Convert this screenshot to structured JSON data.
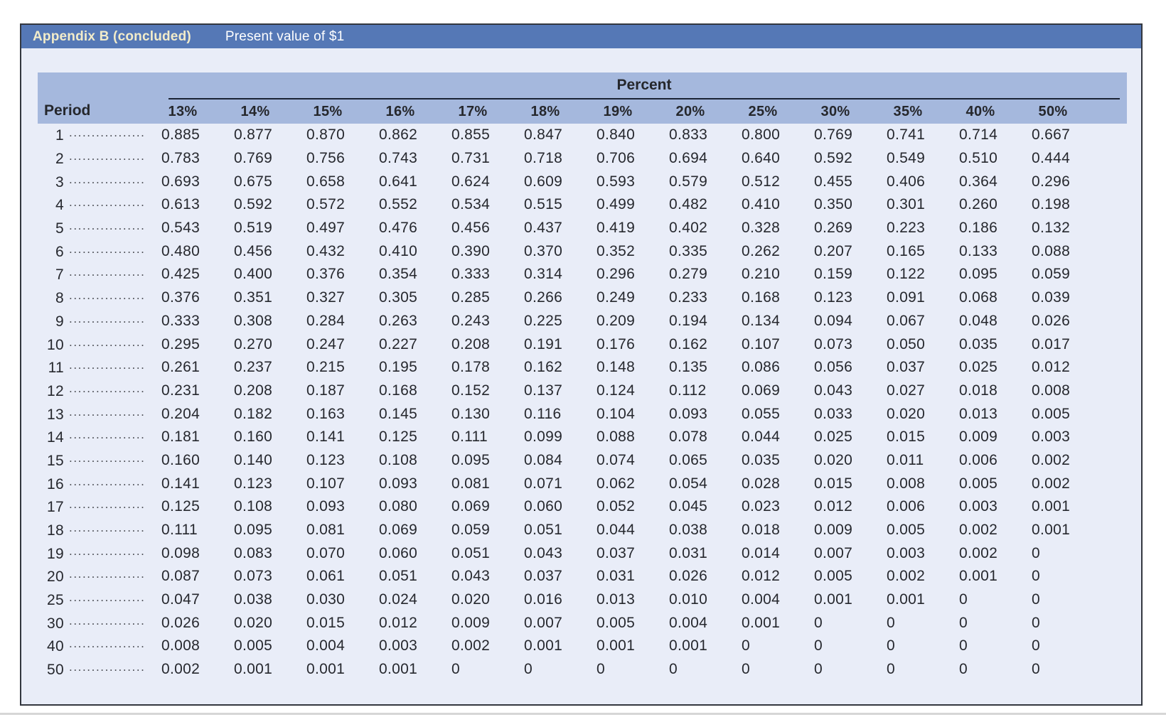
{
  "header": {
    "title_bold": "Appendix B (concluded)",
    "title_rest": "Present value of $1"
  },
  "table": {
    "group_header": "Percent",
    "period_label": "Period",
    "leader_dots": "......................................",
    "rate_headers": [
      "13%",
      "14%",
      "15%",
      "16%",
      "17%",
      "18%",
      "19%",
      "20%",
      "25%",
      "30%",
      "35%",
      "40%",
      "50%"
    ],
    "rows": [
      {
        "period": "1",
        "values": [
          "0.885",
          "0.877",
          "0.870",
          "0.862",
          "0.855",
          "0.847",
          "0.840",
          "0.833",
          "0.800",
          "0.769",
          "0.741",
          "0.714",
          "0.667"
        ]
      },
      {
        "period": "2",
        "values": [
          "0.783",
          "0.769",
          "0.756",
          "0.743",
          "0.731",
          "0.718",
          "0.706",
          "0.694",
          "0.640",
          "0.592",
          "0.549",
          "0.510",
          "0.444"
        ]
      },
      {
        "period": "3",
        "values": [
          "0.693",
          "0.675",
          "0.658",
          "0.641",
          "0.624",
          "0.609",
          "0.593",
          "0.579",
          "0.512",
          "0.455",
          "0.406",
          "0.364",
          "0.296"
        ]
      },
      {
        "period": "4",
        "values": [
          "0.613",
          "0.592",
          "0.572",
          "0.552",
          "0.534",
          "0.515",
          "0.499",
          "0.482",
          "0.410",
          "0.350",
          "0.301",
          "0.260",
          "0.198"
        ]
      },
      {
        "period": "5",
        "values": [
          "0.543",
          "0.519",
          "0.497",
          "0.476",
          "0.456",
          "0.437",
          "0.419",
          "0.402",
          "0.328",
          "0.269",
          "0.223",
          "0.186",
          "0.132"
        ]
      },
      {
        "period": "6",
        "values": [
          "0.480",
          "0.456",
          "0.432",
          "0.410",
          "0.390",
          "0.370",
          "0.352",
          "0.335",
          "0.262",
          "0.207",
          "0.165",
          "0.133",
          "0.088"
        ]
      },
      {
        "period": "7",
        "values": [
          "0.425",
          "0.400",
          "0.376",
          "0.354",
          "0.333",
          "0.314",
          "0.296",
          "0.279",
          "0.210",
          "0.159",
          "0.122",
          "0.095",
          "0.059"
        ]
      },
      {
        "period": "8",
        "values": [
          "0.376",
          "0.351",
          "0.327",
          "0.305",
          "0.285",
          "0.266",
          "0.249",
          "0.233",
          "0.168",
          "0.123",
          "0.091",
          "0.068",
          "0.039"
        ]
      },
      {
        "period": "9",
        "values": [
          "0.333",
          "0.308",
          "0.284",
          "0.263",
          "0.243",
          "0.225",
          "0.209",
          "0.194",
          "0.134",
          "0.094",
          "0.067",
          "0.048",
          "0.026"
        ]
      },
      {
        "period": "10",
        "values": [
          "0.295",
          "0.270",
          "0.247",
          "0.227",
          "0.208",
          "0.191",
          "0.176",
          "0.162",
          "0.107",
          "0.073",
          "0.050",
          "0.035",
          "0.017"
        ]
      },
      {
        "period": "11",
        "values": [
          "0.261",
          "0.237",
          "0.215",
          "0.195",
          "0.178",
          "0.162",
          "0.148",
          "0.135",
          "0.086",
          "0.056",
          "0.037",
          "0.025",
          "0.012"
        ]
      },
      {
        "period": "12",
        "values": [
          "0.231",
          "0.208",
          "0.187",
          "0.168",
          "0.152",
          "0.137",
          "0.124",
          "0.112",
          "0.069",
          "0.043",
          "0.027",
          "0.018",
          "0.008"
        ]
      },
      {
        "period": "13",
        "values": [
          "0.204",
          "0.182",
          "0.163",
          "0.145",
          "0.130",
          "0.116",
          "0.104",
          "0.093",
          "0.055",
          "0.033",
          "0.020",
          "0.013",
          "0.005"
        ]
      },
      {
        "period": "14",
        "values": [
          "0.181",
          "0.160",
          "0.141",
          "0.125",
          "0.111",
          "0.099",
          "0.088",
          "0.078",
          "0.044",
          "0.025",
          "0.015",
          "0.009",
          "0.003"
        ]
      },
      {
        "period": "15",
        "values": [
          "0.160",
          "0.140",
          "0.123",
          "0.108",
          "0.095",
          "0.084",
          "0.074",
          "0.065",
          "0.035",
          "0.020",
          "0.011",
          "0.006",
          "0.002"
        ]
      },
      {
        "period": "16",
        "values": [
          "0.141",
          "0.123",
          "0.107",
          "0.093",
          "0.081",
          "0.071",
          "0.062",
          "0.054",
          "0.028",
          "0.015",
          "0.008",
          "0.005",
          "0.002"
        ]
      },
      {
        "period": "17",
        "values": [
          "0.125",
          "0.108",
          "0.093",
          "0.080",
          "0.069",
          "0.060",
          "0.052",
          "0.045",
          "0.023",
          "0.012",
          "0.006",
          "0.003",
          "0.001"
        ]
      },
      {
        "period": "18",
        "values": [
          "0.111",
          "0.095",
          "0.081",
          "0.069",
          "0.059",
          "0.051",
          "0.044",
          "0.038",
          "0.018",
          "0.009",
          "0.005",
          "0.002",
          "0.001"
        ]
      },
      {
        "period": "19",
        "values": [
          "0.098",
          "0.083",
          "0.070",
          "0.060",
          "0.051",
          "0.043",
          "0.037",
          "0.031",
          "0.014",
          "0.007",
          "0.003",
          "0.002",
          "0"
        ]
      },
      {
        "period": "20",
        "values": [
          "0.087",
          "0.073",
          "0.061",
          "0.051",
          "0.043",
          "0.037",
          "0.031",
          "0.026",
          "0.012",
          "0.005",
          "0.002",
          "0.001",
          "0"
        ]
      },
      {
        "period": "25",
        "values": [
          "0.047",
          "0.038",
          "0.030",
          "0.024",
          "0.020",
          "0.016",
          "0.013",
          "0.010",
          "0.004",
          "0.001",
          "0.001",
          "0",
          "0"
        ]
      },
      {
        "period": "30",
        "values": [
          "0.026",
          "0.020",
          "0.015",
          "0.012",
          "0.009",
          "0.007",
          "0.005",
          "0.004",
          "0.001",
          "0",
          "0",
          "0",
          "0"
        ]
      },
      {
        "period": "40",
        "values": [
          "0.008",
          "0.005",
          "0.004",
          "0.003",
          "0.002",
          "0.001",
          "0.001",
          "0.001",
          "0",
          "0",
          "0",
          "0",
          "0"
        ]
      },
      {
        "period": "50",
        "values": [
          "0.002",
          "0.001",
          "0.001",
          "0.001",
          "0",
          "0",
          "0",
          "0",
          "0",
          "0",
          "0",
          "0",
          "0"
        ]
      }
    ]
  },
  "colors": {
    "title_bar": "#5578b6",
    "title_accent_text": "#f2ecca",
    "band": "#a5b8dd",
    "panel": "#e9edf8",
    "frame_border": "#33373f",
    "text": "#26282e"
  }
}
